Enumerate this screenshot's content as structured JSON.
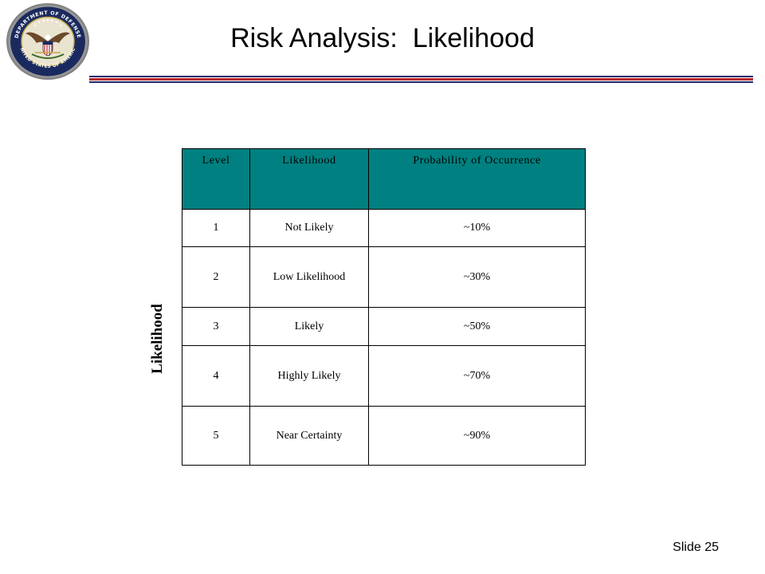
{
  "title": "Risk Analysis:  Likelihood",
  "seal": {
    "icon": "department-of-defense-seal-icon",
    "text": "DEPARTMENT OF DEFENSE UNITED STATES OF AMERICA"
  },
  "side_label": "Likelihood",
  "table": {
    "headers": [
      "Level",
      "Likelihood",
      "Probability of Occurrence"
    ],
    "rows": [
      {
        "level": "1",
        "likelihood": "Not Likely",
        "probability": "~10%"
      },
      {
        "level": "2",
        "likelihood": "Low Likelihood",
        "probability": "~30%"
      },
      {
        "level": "3",
        "likelihood": "Likely",
        "probability": "~50%"
      },
      {
        "level": "4",
        "likelihood": "Highly Likely",
        "probability": "~70%"
      },
      {
        "level": "5",
        "likelihood": "Near Certainty",
        "probability": "~90%"
      }
    ],
    "header_color": "#008080"
  },
  "footer": {
    "slide_number": "Slide 25"
  },
  "colors": {
    "rule_navy": "#1f2a6b",
    "rule_red": "#b8282e"
  }
}
